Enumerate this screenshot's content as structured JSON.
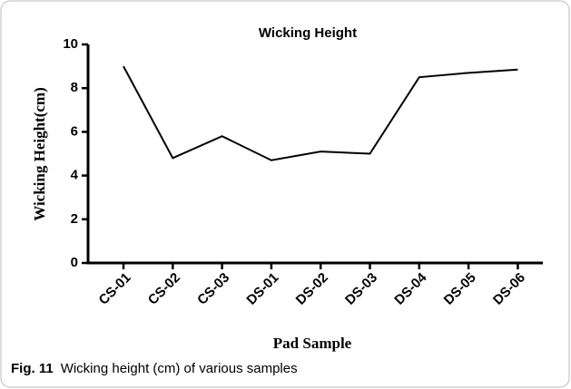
{
  "chart_data": {
    "type": "line",
    "title": "Wicking Height",
    "x_label": "Pad Sample",
    "y_label": "Wicking Height(cm)",
    "categories": [
      "CS-01",
      "CS-02",
      "CS-03",
      "DS-01",
      "DS-02",
      "DS-03",
      "DS-04",
      "DS-05",
      "DS-06"
    ],
    "values": [
      9.0,
      4.8,
      5.8,
      4.7,
      5.1,
      5.0,
      8.5,
      8.7,
      8.85
    ],
    "color": "#000000",
    "ylim": [
      0,
      10
    ],
    "yticks": [
      0,
      2,
      4,
      6,
      8,
      10
    ],
    "grid": false
  },
  "caption": {
    "label": "Fig. 11",
    "text": "Wicking height (cm) of various samples"
  }
}
